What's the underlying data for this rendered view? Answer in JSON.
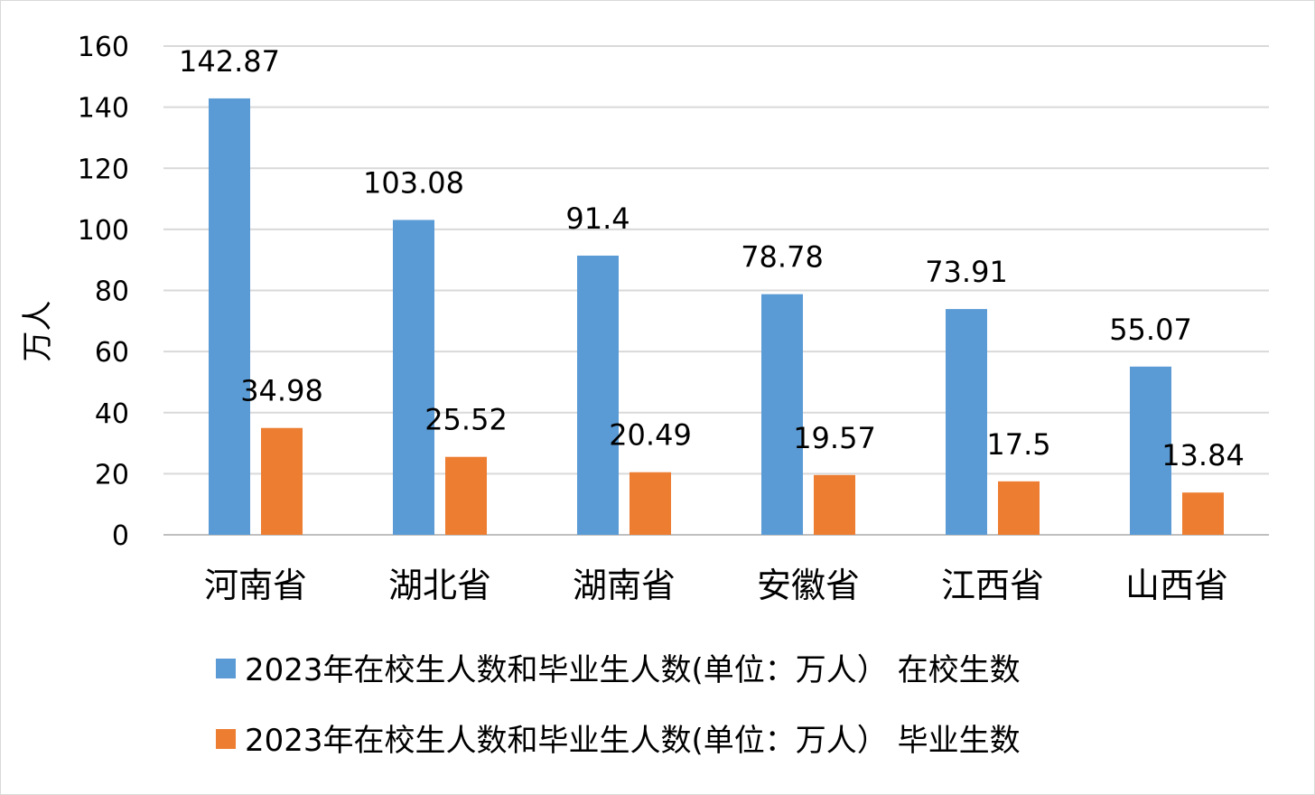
{
  "chart_data": {
    "type": "bar",
    "title": "",
    "xlabel": "",
    "ylabel": "万人",
    "ylim": [
      0,
      160
    ],
    "yticks": [
      0,
      20,
      40,
      60,
      80,
      100,
      120,
      140,
      160
    ],
    "grid": true,
    "legend_position": "bottom",
    "categories": [
      "河南省",
      "湖北省",
      "湖南省",
      "安徽省",
      "江西省",
      "山西省"
    ],
    "series": [
      {
        "name": "2023年在校生人数和毕业生人数(单位：万人） 在校生数",
        "color": "#5b9bd5",
        "values": [
          142.87,
          103.08,
          91.4,
          78.78,
          73.91,
          55.07
        ],
        "labels": [
          "142.87",
          "103.08",
          "91.4",
          "78.78",
          "73.91",
          "55.07"
        ]
      },
      {
        "name": "2023年在校生人数和毕业生人数(单位：万人） 毕业生数",
        "color": "#ed7d31",
        "values": [
          34.98,
          25.52,
          20.49,
          19.57,
          17.5,
          13.84
        ],
        "labels": [
          "34.98",
          "25.52",
          "20.49",
          "19.57",
          "17.5",
          "13.84"
        ]
      }
    ]
  }
}
